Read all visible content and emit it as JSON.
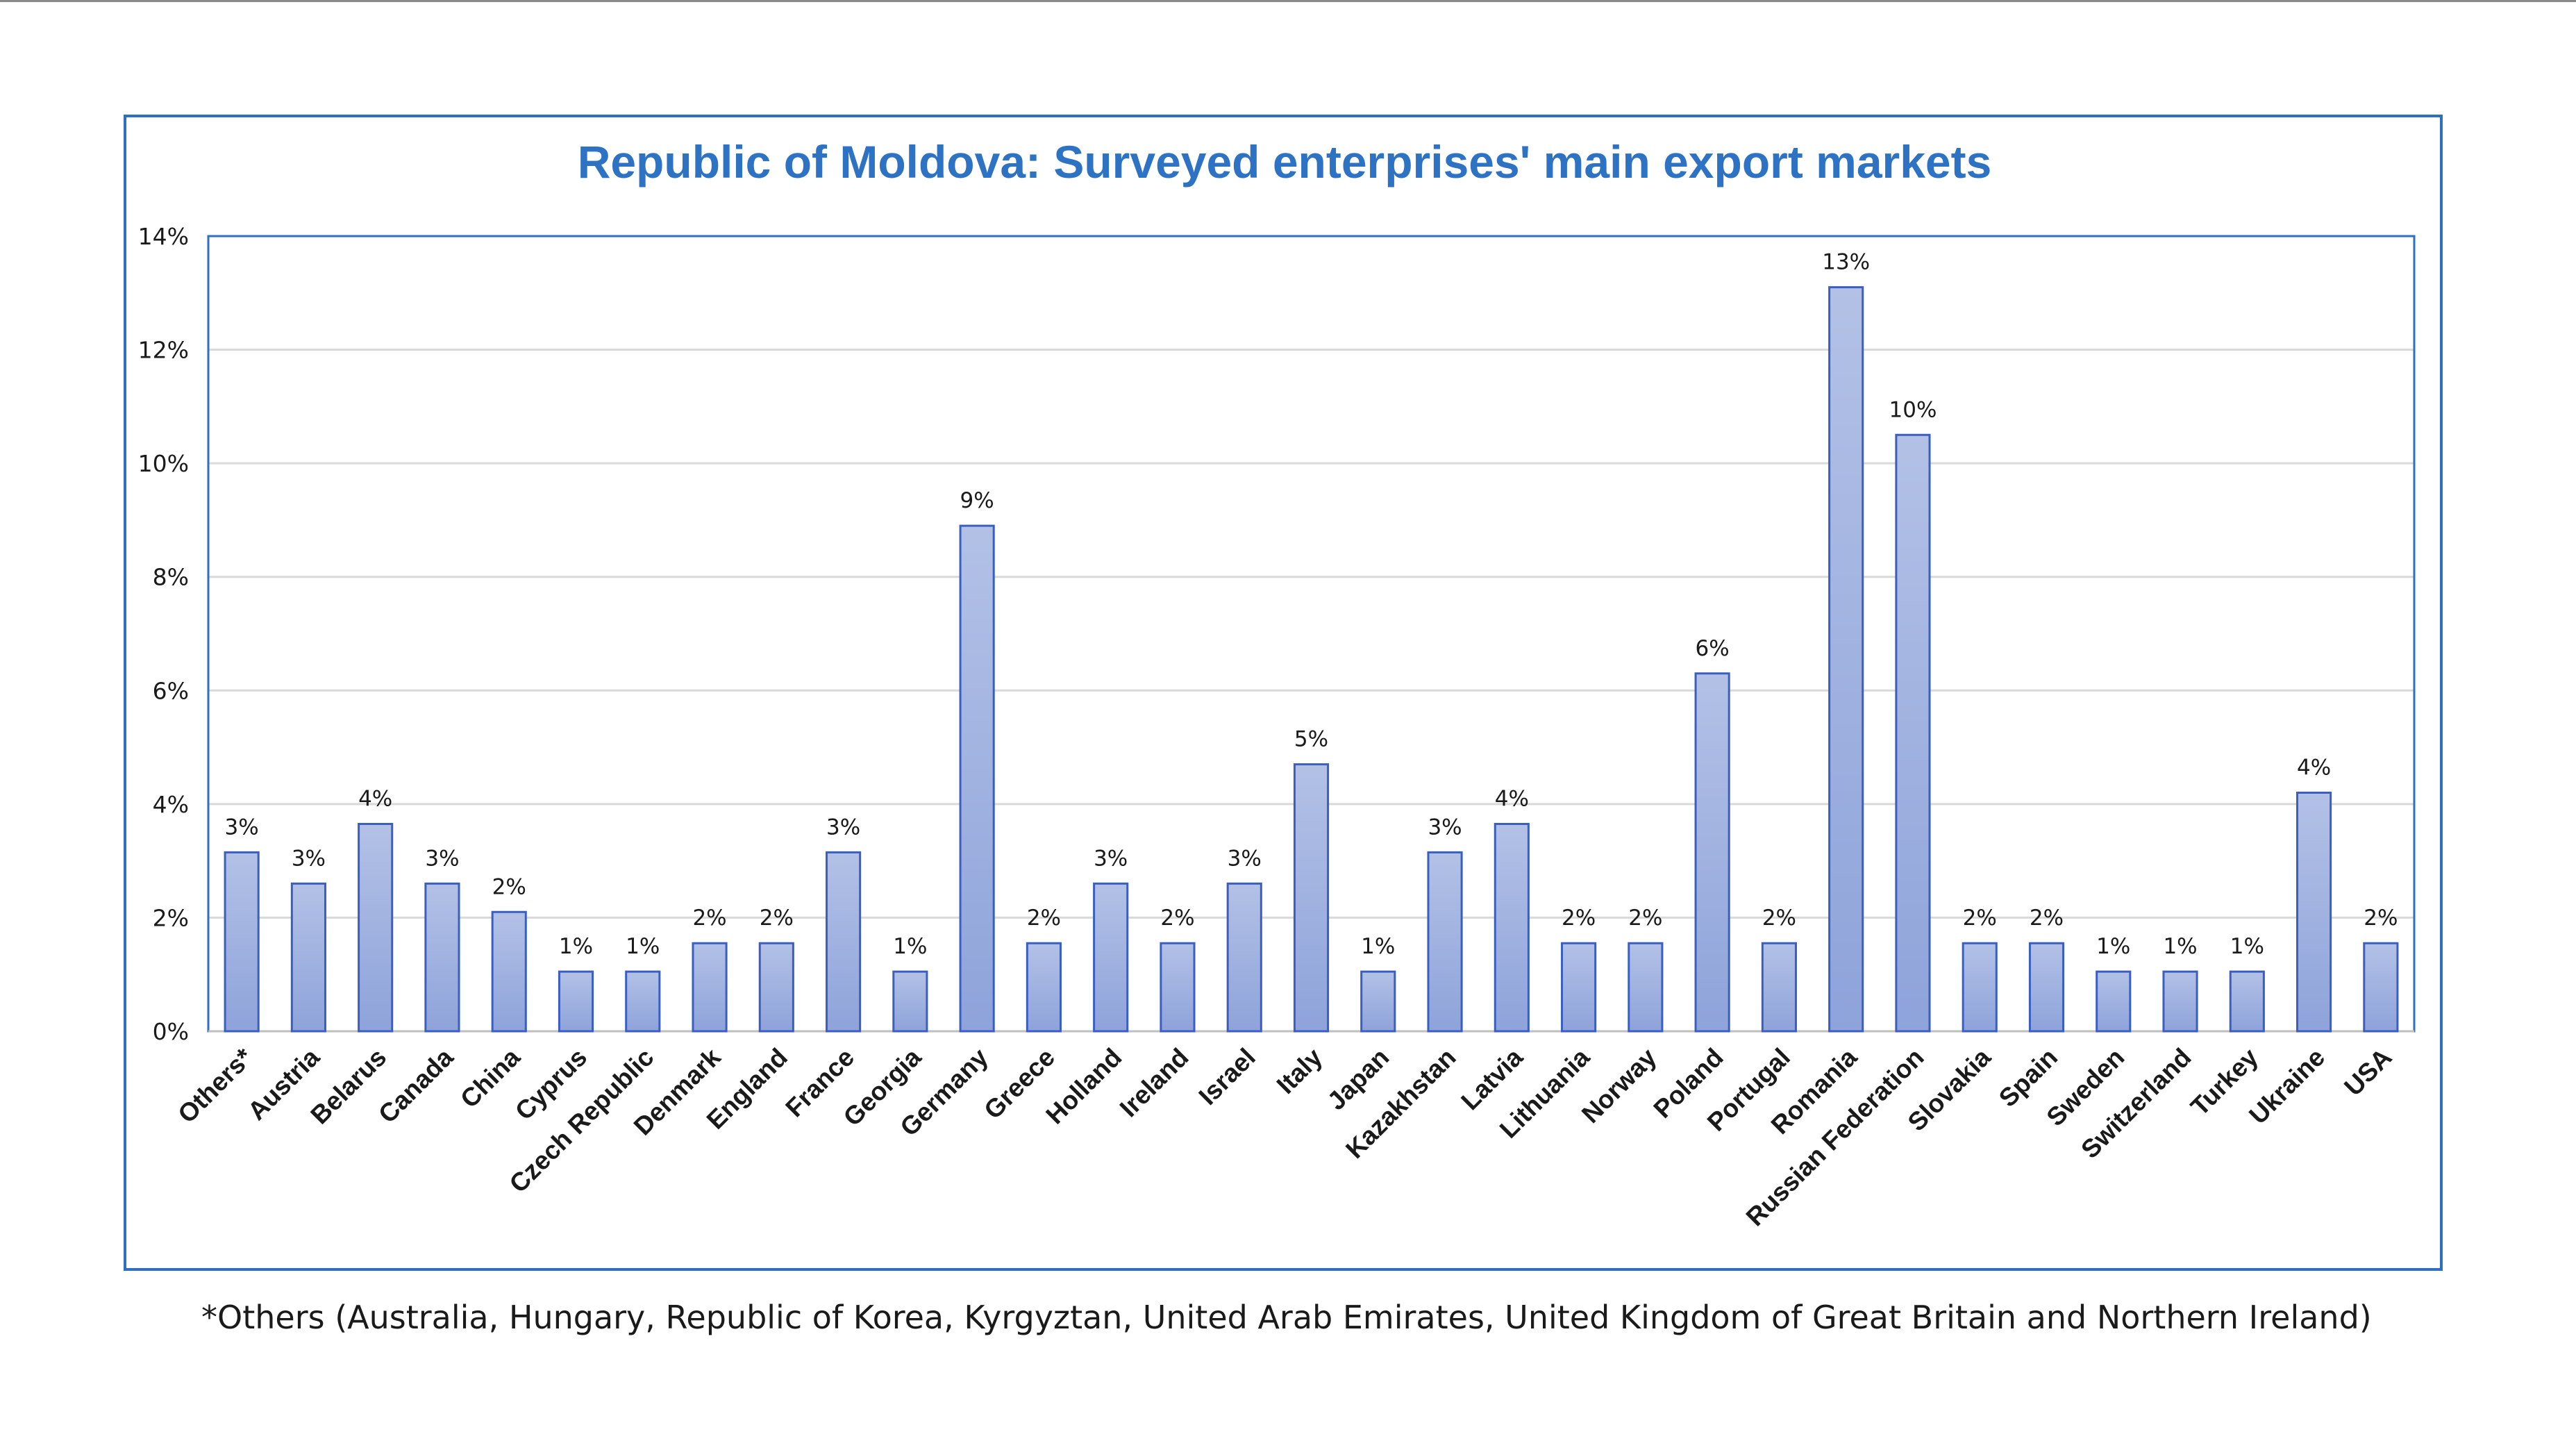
{
  "chart_data": {
    "type": "bar",
    "title": "Republic of Moldova: Surveyed enterprises' main export markets",
    "xlabel": "",
    "ylabel": "",
    "ylim": [
      0,
      14
    ],
    "y_ticks": [
      "0%",
      "2%",
      "4%",
      "6%",
      "8%",
      "10%",
      "12%",
      "14%"
    ],
    "grid": true,
    "legend": "none",
    "categories": [
      "Others*",
      "Austria",
      "Belarus",
      "Canada",
      "China",
      "Cyprus",
      "Czech Republic",
      "Denmark",
      "England",
      "France",
      "Georgia",
      "Germany",
      "Greece",
      "Holland",
      "Ireland",
      "Israel",
      "Italy",
      "Japan",
      "Kazakhstan",
      "Latvia",
      "Lithuania",
      "Norway",
      "Poland",
      "Portugal",
      "Romania",
      "Russian Federation",
      "Slovakia",
      "Spain",
      "Sweden",
      "Switzerland",
      "Turkey",
      "Ukraine",
      "USA"
    ],
    "values": [
      3.15,
      2.6,
      3.65,
      2.6,
      2.1,
      1.05,
      1.05,
      1.55,
      1.55,
      3.15,
      1.05,
      8.9,
      1.55,
      2.6,
      1.55,
      2.6,
      4.7,
      1.05,
      3.15,
      3.65,
      1.55,
      1.55,
      6.3,
      1.55,
      13.1,
      10.5,
      1.55,
      1.55,
      1.05,
      1.05,
      1.05,
      4.2,
      1.55
    ],
    "data_labels": [
      "3%",
      "3%",
      "4%",
      "3%",
      "2%",
      "1%",
      "1%",
      "2%",
      "2%",
      "3%",
      "1%",
      "9%",
      "2%",
      "3%",
      "2%",
      "3%",
      "5%",
      "1%",
      "3%",
      "4%",
      "2%",
      "2%",
      "6%",
      "2%",
      "13%",
      "10%",
      "2%",
      "2%",
      "1%",
      "1%",
      "1%",
      "4%",
      "2%"
    ],
    "colors": {
      "bar_fill_top": "#b3c1e6",
      "bar_fill_bottom": "#8ea3da",
      "bar_stroke": "#3b5fc0",
      "frame": "#2f6fc1",
      "title": "#2e72c4",
      "grid": "#d9d9d9"
    }
  },
  "footnote": "*Others (Australia, Hungary, Republic of Korea, Kyrgyztan, United Arab Emirates, United Kingdom of Great Britain and Northern Ireland)"
}
